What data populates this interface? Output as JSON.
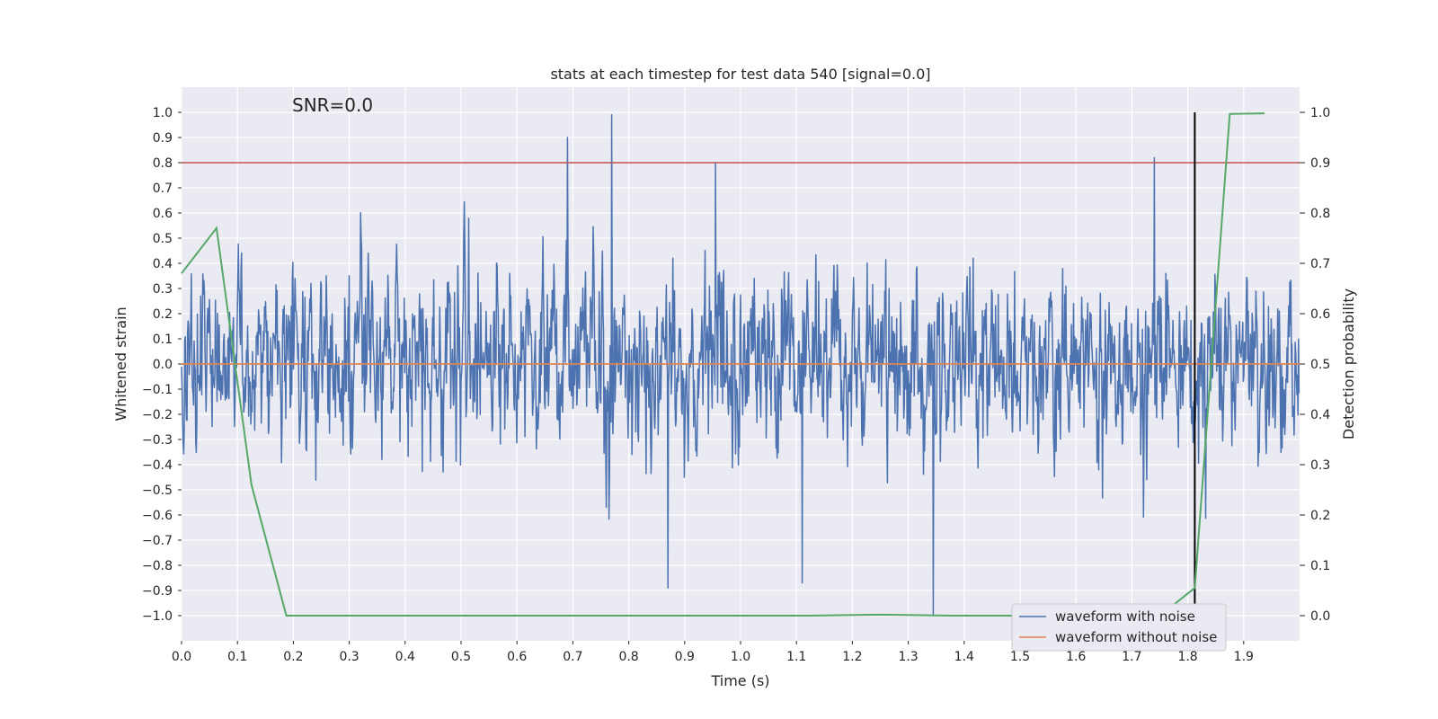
{
  "chart_data": {
    "type": "line",
    "title": "stats at each timestep for test data 540 [signal=0.0]",
    "xlabel": "Time (s)",
    "ylabel": "Whitened strain",
    "y2label": "Detection probability",
    "annotation": "SNR=0.0",
    "xlim": [
      0.0,
      2.0
    ],
    "ylim": [
      -1.1,
      1.1
    ],
    "y2lim": [
      -0.05,
      1.05
    ],
    "x_ticks": [
      0.0,
      0.1,
      0.2,
      0.3,
      0.4,
      0.5,
      0.6,
      0.7,
      0.8,
      0.9,
      1.0,
      1.1,
      1.2,
      1.3,
      1.4,
      1.5,
      1.6,
      1.7,
      1.8,
      1.9
    ],
    "x_tick_labels": [
      "0.0",
      "0.1",
      "0.2",
      "0.3",
      "0.4",
      "0.5",
      "0.6",
      "0.7",
      "0.8",
      "0.9",
      "1.0",
      "1.1",
      "1.2",
      "1.3",
      "1.4",
      "1.5",
      "1.6",
      "1.7",
      "1.8",
      "1.9"
    ],
    "y_ticks": [
      -1.0,
      -0.9,
      -0.8,
      -0.7,
      -0.6,
      -0.5,
      -0.4,
      -0.3,
      -0.2,
      -0.1,
      0.0,
      0.1,
      0.2,
      0.3,
      0.4,
      0.5,
      0.6,
      0.7,
      0.8,
      0.9,
      1.0
    ],
    "y_tick_labels": [
      "−1.0",
      "−0.9",
      "−0.8",
      "−0.7",
      "−0.6",
      "−0.5",
      "−0.4",
      "−0.3",
      "−0.2",
      "−0.1",
      "0.0",
      "0.1",
      "0.2",
      "0.3",
      "0.4",
      "0.5",
      "0.6",
      "0.7",
      "0.8",
      "0.9",
      "1.0"
    ],
    "y2_ticks": [
      0.0,
      0.1,
      0.2,
      0.3,
      0.4,
      0.5,
      0.6,
      0.7,
      0.8,
      0.9,
      1.0
    ],
    "y2_tick_labels": [
      "0.0",
      "0.1",
      "0.2",
      "0.3",
      "0.4",
      "0.5",
      "0.6",
      "0.7",
      "0.8",
      "0.9",
      "1.0"
    ],
    "grid": true,
    "legend": {
      "placement": "lower-right",
      "entries": [
        "waveform with noise",
        "waveform without noise"
      ]
    },
    "series": [
      {
        "name": "waveform with noise",
        "color": "#4c72b0",
        "axis": "left",
        "note": "dense noise (~2048 samples over 0–2 s), peaks approx",
        "peaks": [
          [
            0.69,
            0.9
          ],
          [
            0.77,
            0.99
          ],
          [
            0.955,
            0.8
          ],
          [
            1.74,
            0.82
          ],
          [
            0.87,
            -0.89
          ],
          [
            1.345,
            -1.0
          ],
          [
            1.11,
            -0.87
          ]
        ]
      },
      {
        "name": "waveform without noise",
        "color": "#dd8452",
        "axis": "left",
        "x": [
          0.0,
          2.0
        ],
        "y": [
          0.0,
          0.0
        ]
      },
      {
        "name": "detection probability",
        "color": "#55a868",
        "axis": "right",
        "x": [
          0.0,
          0.0625,
          0.125,
          0.1875,
          0.25,
          0.3125,
          0.375,
          0.4375,
          0.5,
          0.5625,
          0.625,
          0.6875,
          0.75,
          0.8125,
          0.875,
          0.9375,
          1.0,
          1.0625,
          1.125,
          1.1875,
          1.25,
          1.3125,
          1.375,
          1.4375,
          1.5,
          1.5625,
          1.625,
          1.6875,
          1.75,
          1.8125,
          1.875,
          1.9375
        ],
        "y": [
          0.68,
          0.77,
          0.26,
          0.0,
          0.0,
          0.0,
          0.0,
          0.0,
          0.0,
          0.0,
          0.0,
          0.0,
          0.0,
          0.0,
          0.0,
          0.0,
          0.0,
          0.0,
          0.0,
          0.001,
          0.002,
          0.001,
          0.0,
          0.0,
          0.0,
          0.0,
          0.0,
          0.0,
          0.0,
          0.055,
          0.997,
          0.998
        ]
      }
    ],
    "hlines": [
      {
        "name": "threshold",
        "y2": 0.9,
        "color": "#c44e52"
      }
    ],
    "vlines": [
      {
        "name": "marker",
        "x": 1.8125,
        "color": "#000000",
        "y2_range": [
          0.0,
          1.0
        ]
      }
    ]
  }
}
